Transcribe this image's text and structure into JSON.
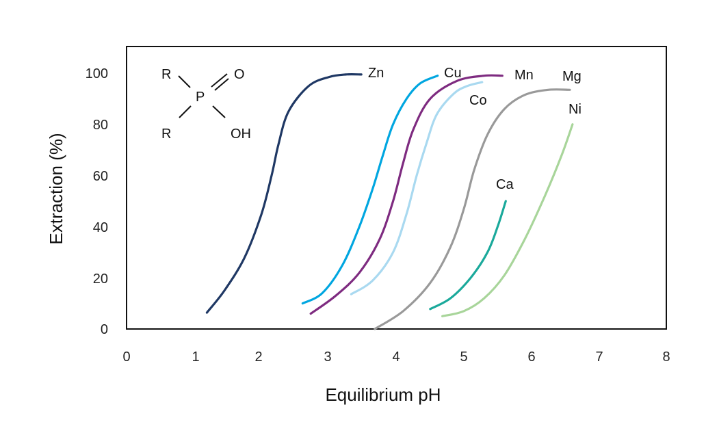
{
  "chart_data": {
    "type": "line",
    "title": "",
    "xlabel": "Equilibrium pH",
    "ylabel": "Extraction (%)",
    "xlim": [
      0,
      8
    ],
    "ylim": [
      0,
      110
    ],
    "x_ticks": [
      "0",
      "1",
      "2",
      "3",
      "4",
      "5",
      "6",
      "7",
      "8"
    ],
    "y_ticks": [
      "0",
      "20",
      "40",
      "60",
      "80",
      "100"
    ],
    "grid": false,
    "legend": "inline labels at curve ends",
    "series": [
      {
        "name": "Zn",
        "color": "#1f3864",
        "x": [
          1.19,
          1.45,
          1.75,
          2.0,
          2.15,
          2.25,
          2.4,
          2.7,
          3.0,
          3.25,
          3.48
        ],
        "y": [
          6.4,
          15,
          28,
          45,
          60,
          72,
          85,
          95,
          98.5,
          99.5,
          99.5
        ]
      },
      {
        "name": "Cu",
        "color": "#00a6e0",
        "x": [
          2.61,
          2.9,
          3.2,
          3.45,
          3.65,
          3.8,
          3.95,
          4.15,
          4.35,
          4.61
        ],
        "y": [
          10,
          14,
          25,
          40,
          55,
          68,
          80,
          90,
          96,
          99
        ]
      },
      {
        "name": "Mn",
        "color": "#7e2b80",
        "x": [
          2.73,
          3.1,
          3.45,
          3.75,
          3.95,
          4.1,
          4.25,
          4.5,
          4.9,
          5.3,
          5.57
        ],
        "y": [
          6,
          13,
          22,
          35,
          50,
          65,
          78,
          90,
          97,
          99,
          99
        ]
      },
      {
        "name": "Co",
        "color": "#a9d9f0",
        "x": [
          3.33,
          3.65,
          3.95,
          4.15,
          4.3,
          4.45,
          4.6,
          4.85,
          5.05,
          5.27
        ],
        "y": [
          13.6,
          19,
          30,
          45,
          60,
          73,
          84,
          92,
          95,
          96.5
        ]
      },
      {
        "name": "Mg",
        "color": "#999999",
        "x": [
          3.68,
          4.1,
          4.5,
          4.8,
          5.0,
          5.15,
          5.35,
          5.6,
          5.9,
          6.25,
          6.57
        ],
        "y": [
          0,
          7,
          18,
          32,
          47,
          62,
          76,
          86,
          91.5,
          93.5,
          93.5
        ]
      },
      {
        "name": "Ca",
        "color": "#1aa99b",
        "x": [
          4.5,
          4.8,
          5.1,
          5.35,
          5.5,
          5.62
        ],
        "y": [
          7.8,
          12,
          20,
          30,
          40,
          50
        ]
      },
      {
        "name": "Ni",
        "color": "#a8d59a",
        "x": [
          4.68,
          5.0,
          5.3,
          5.6,
          5.9,
          6.2,
          6.45,
          6.61
        ],
        "y": [
          5,
          7,
          12,
          21,
          35,
          52,
          68,
          80
        ]
      }
    ],
    "annotations": [
      {
        "type": "structure",
        "label": "phosphinic acid",
        "atoms": [
          "R",
          "R",
          "P",
          "O",
          "OH"
        ]
      }
    ]
  },
  "labels": {
    "x_axis_title": "Equilibrium pH",
    "y_axis_title": "Extraction (%)",
    "x_ticks": [
      "0",
      "1",
      "2",
      "3",
      "4",
      "5",
      "6",
      "7",
      "8"
    ],
    "y_ticks": [
      "0",
      "20",
      "40",
      "60",
      "80",
      "100"
    ],
    "series": {
      "zn": "Zn",
      "cu": "Cu",
      "mn": "Mn",
      "co": "Co",
      "mg": "Mg",
      "ni": "Ni",
      "ca": "Ca"
    },
    "molecule": {
      "r1": "R",
      "r2": "R",
      "p": "P",
      "o": "O",
      "oh": "OH"
    }
  }
}
